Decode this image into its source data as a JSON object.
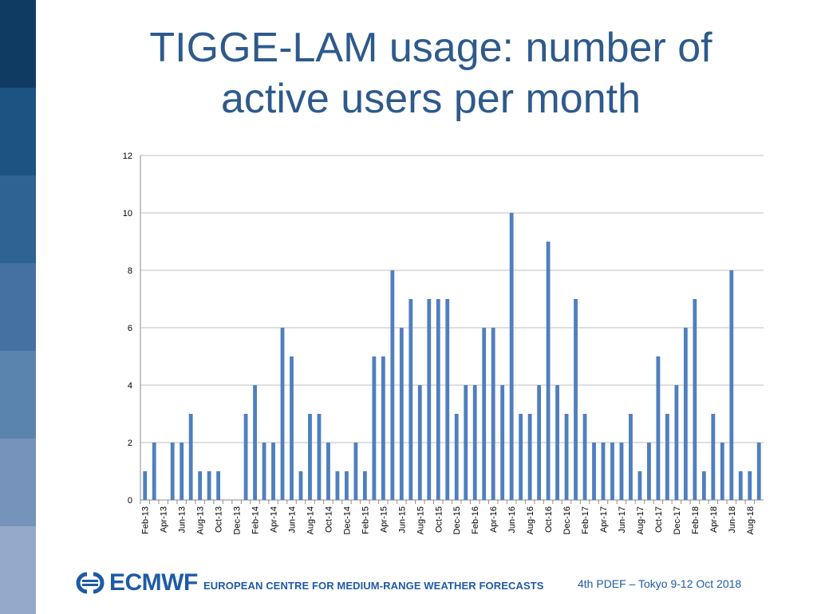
{
  "slide": {
    "title_line1": "TIGGE-LAM usage: number of",
    "title_line2": "active users per month"
  },
  "footer": {
    "logo_text": "ECMWF",
    "org_name": "EUROPEAN CENTRE FOR MEDIUM-RANGE WEATHER FORECASTS",
    "event": "4th PDEF – Tokyo 9-12 Oct 2018"
  },
  "colors": {
    "bar": "#4f7fbf",
    "title": "#2e5a8c",
    "brand": "#1e5ba6",
    "side_band": [
      "#0f3b63",
      "#1d5383",
      "#2f6394",
      "#44719f",
      "#5a83ad",
      "#7593bb",
      "#94aaca"
    ]
  },
  "chart_data": {
    "type": "bar",
    "title": "",
    "xlabel": "",
    "ylabel": "",
    "ylim": [
      0,
      12
    ],
    "yticks": [
      0,
      2,
      4,
      6,
      8,
      10,
      12
    ],
    "grid": true,
    "categories": [
      "Feb-13",
      "Mar-13",
      "Apr-13",
      "May-13",
      "Jun-13",
      "Jul-13",
      "Aug-13",
      "Sep-13",
      "Oct-13",
      "Nov-13",
      "Dec-13",
      "Jan-14",
      "Feb-14",
      "Mar-14",
      "Apr-14",
      "May-14",
      "Jun-14",
      "Jul-14",
      "Aug-14",
      "Sep-14",
      "Oct-14",
      "Nov-14",
      "Dec-14",
      "Jan-15",
      "Feb-15",
      "Mar-15",
      "Apr-15",
      "May-15",
      "Jun-15",
      "Jul-15",
      "Aug-15",
      "Sep-15",
      "Oct-15",
      "Nov-15",
      "Dec-15",
      "Jan-16",
      "Feb-16",
      "Mar-16",
      "Apr-16",
      "May-16",
      "Jun-16",
      "Jul-16",
      "Aug-16",
      "Sep-16",
      "Oct-16",
      "Nov-16",
      "Dec-16",
      "Jan-17",
      "Feb-17",
      "Mar-17",
      "Apr-17",
      "May-17",
      "Jun-17",
      "Jul-17",
      "Aug-17",
      "Sep-17",
      "Oct-17",
      "Nov-17",
      "Dec-17",
      "Jan-18",
      "Feb-18",
      "Mar-18",
      "Apr-18",
      "May-18",
      "Jun-18",
      "Jul-18",
      "Aug-18",
      "Sep-18"
    ],
    "tick_labels": [
      "Feb-13",
      "Apr-13",
      "Jun-13",
      "Aug-13",
      "Oct-13",
      "Dec-13",
      "Feb-14",
      "Apr-14",
      "Jun-14",
      "Aug-14",
      "Oct-14",
      "Dec-14",
      "Feb-15",
      "Apr-15",
      "Jun-15",
      "Aug-15",
      "Oct-15",
      "Dec-15",
      "Feb-16",
      "Apr-16",
      "Jun-16",
      "Aug-16",
      "Oct-16",
      "Dec-16",
      "Feb-17",
      "Apr-17",
      "Jun-17",
      "Aug-17",
      "Oct-17",
      "Dec-17",
      "Feb-18",
      "Apr-18",
      "Jun-18",
      "Aug-18"
    ],
    "values": [
      1,
      2,
      0,
      2,
      2,
      3,
      1,
      1,
      1,
      0,
      0,
      3,
      4,
      2,
      2,
      6,
      5,
      1,
      3,
      3,
      2,
      1,
      1,
      2,
      1,
      5,
      5,
      8,
      6,
      7,
      4,
      7,
      7,
      7,
      3,
      4,
      4,
      6,
      6,
      4,
      10,
      3,
      3,
      4,
      9,
      4,
      3,
      7,
      3,
      2,
      2,
      2,
      2,
      3,
      1,
      2,
      5,
      3,
      4,
      6,
      7,
      1,
      3,
      2,
      8,
      1,
      1,
      2
    ]
  }
}
